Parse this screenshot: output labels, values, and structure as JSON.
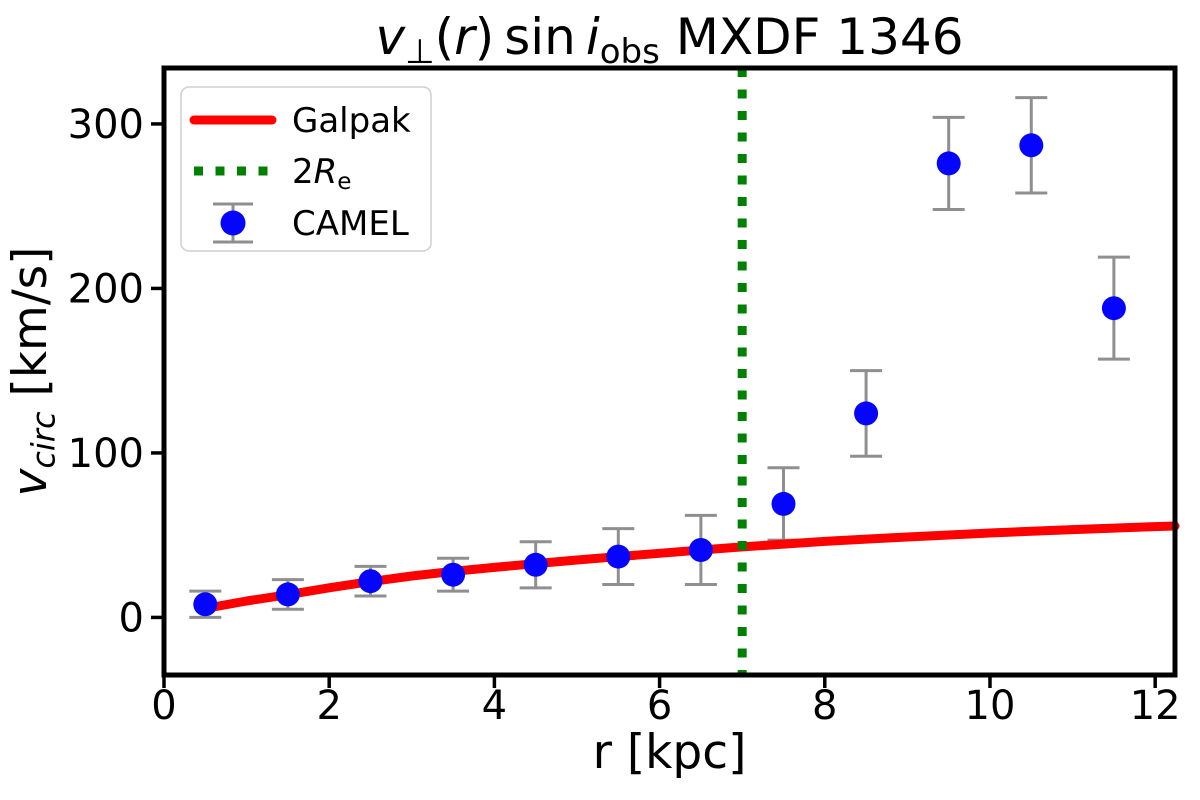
{
  "colors": {
    "galpak_red": "#ff0000",
    "re_green": "#008000",
    "camel_blue": "#0505ff",
    "errorbar_gray": "#8f8f8f",
    "axis_black": "#000000",
    "legend_border": "#cfcfcf"
  },
  "text": {
    "title_plain": "v⊥(r) sin i_obs MXDF 1346",
    "title_segments": [
      {
        "t": "v",
        "italic": true
      },
      {
        "t": "⊥",
        "sub": true
      },
      {
        "t": "("
      },
      {
        "t": "r",
        "italic": true
      },
      {
        "t": ") sin "
      },
      {
        "t": "i",
        "italic": true
      },
      {
        "t": "obs",
        "sub": true
      },
      {
        "t": " MXDF 1346"
      }
    ],
    "xlabel_segments": [
      {
        "t": "r [kpc]"
      }
    ],
    "ylabel_segments": [
      {
        "t": "v",
        "italic": true
      },
      {
        "t": "circ",
        "sub": true,
        "italic": true
      },
      {
        "t": " [km/s]"
      }
    ]
  },
  "legend": {
    "entries": [
      {
        "key": "galpak",
        "label": "Galpak",
        "sample": "red-solid-line",
        "segments": [
          {
            "t": "Galpak"
          }
        ]
      },
      {
        "key": "re",
        "label": "2Re",
        "sample": "green-dotted-line",
        "segments": [
          {
            "t": "2"
          },
          {
            "t": "R",
            "italic": true
          },
          {
            "t": "e",
            "sub": true
          }
        ]
      },
      {
        "key": "camel",
        "label": "CAMEL",
        "sample": "blue-marker-with-errorbar",
        "segments": [
          {
            "t": "CAMEL"
          }
        ]
      }
    ]
  },
  "chart_data": {
    "type": "scatter",
    "title": "v⊥(r) sin i_obs MXDF 1346",
    "xlabel": "r [kpc]",
    "ylabel": "v_circ [km/s]",
    "xlim": [
      0,
      12.24
    ],
    "ylim": [
      -35,
      334
    ],
    "xticks": [
      0,
      2,
      4,
      6,
      8,
      10,
      12
    ],
    "yticks": [
      0,
      100,
      200,
      300
    ],
    "grid": false,
    "legend_position": "upper-left",
    "series": [
      {
        "name": "CAMEL",
        "type": "scatter-errorbar",
        "marker": "circle",
        "x": [
          0.5,
          1.5,
          2.5,
          3.5,
          4.5,
          5.5,
          6.5,
          7.5,
          8.5,
          9.5,
          10.5,
          11.5
        ],
        "y": [
          8,
          14,
          22,
          26,
          32,
          37,
          41,
          69,
          124,
          276,
          287,
          188
        ],
        "yerr": [
          8,
          9,
          9,
          10,
          14,
          17,
          21,
          22,
          26,
          28,
          29,
          31
        ]
      },
      {
        "name": "Galpak",
        "type": "line",
        "x": [
          0.5,
          1.0,
          1.5,
          2.0,
          2.5,
          3.0,
          3.5,
          4.0,
          4.5,
          5.0,
          5.5,
          6.0,
          6.5,
          7.0,
          7.5,
          8.0,
          8.5,
          9.0,
          9.5,
          10.0,
          10.5,
          11.0,
          11.5,
          12.0,
          12.24
        ],
        "y": [
          5.5,
          10.0,
          13.8,
          18.0,
          21.8,
          25.2,
          28.0,
          30.4,
          32.7,
          34.9,
          37.0,
          39.0,
          41.0,
          42.9,
          44.6,
          46.2,
          47.6,
          48.9,
          50.1,
          51.3,
          52.4,
          53.4,
          54.3,
          55.2,
          55.6
        ]
      },
      {
        "name": "2Re",
        "type": "vline",
        "x": 7.0,
        "linestyle": "dotted"
      }
    ]
  }
}
